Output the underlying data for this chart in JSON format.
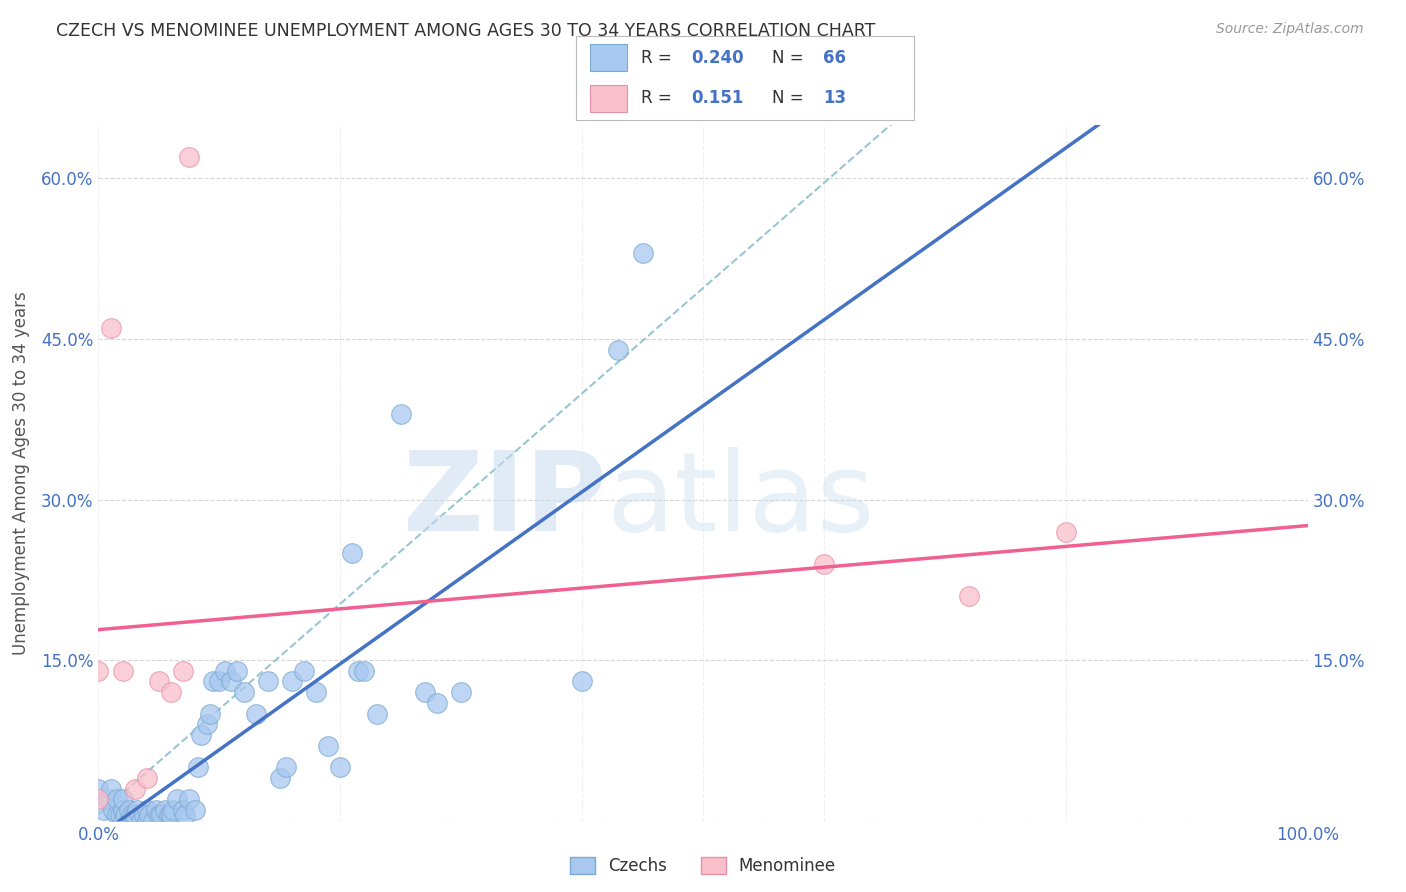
{
  "title": "CZECH VS MENOMINEE UNEMPLOYMENT AMONG AGES 30 TO 34 YEARS CORRELATION CHART",
  "source": "Source: ZipAtlas.com",
  "ylabel": "Unemployment Among Ages 30 to 34 years",
  "xlim": [
    0,
    1.0
  ],
  "ylim": [
    0,
    0.65
  ],
  "blue_color": "#A8C8F0",
  "pink_color": "#F9C0CB",
  "blue_edge": "#7AAAD0",
  "pink_edge": "#E890A8",
  "line_blue": "#4472C4",
  "line_pink": "#F06090",
  "dash_color": "#90B8D8",
  "legend_R_blue": "0.240",
  "legend_N_blue": "66",
  "legend_R_pink": "0.151",
  "legend_N_pink": "13",
  "czechs_x": [
    0.0,
    0.005,
    0.008,
    0.01,
    0.012,
    0.015,
    0.015,
    0.018,
    0.02,
    0.02,
    0.02,
    0.022,
    0.025,
    0.025,
    0.028,
    0.03,
    0.03,
    0.032,
    0.035,
    0.038,
    0.04,
    0.04,
    0.042,
    0.045,
    0.048,
    0.05,
    0.052,
    0.055,
    0.058,
    0.06,
    0.062,
    0.065,
    0.07,
    0.072,
    0.075,
    0.08,
    0.082,
    0.085,
    0.09,
    0.092,
    0.095,
    0.1,
    0.105,
    0.11,
    0.115,
    0.12,
    0.13,
    0.14,
    0.15,
    0.155,
    0.16,
    0.17,
    0.18,
    0.19,
    0.2,
    0.21,
    0.215,
    0.22,
    0.23,
    0.25,
    0.27,
    0.28,
    0.3,
    0.4,
    0.43,
    0.45
  ],
  "czechs_y": [
    0.03,
    0.01,
    0.02,
    0.03,
    0.01,
    0.005,
    0.02,
    0.005,
    0.0,
    0.01,
    0.02,
    0.005,
    0.0,
    0.01,
    0.005,
    0.0,
    0.005,
    0.01,
    0.0,
    0.005,
    0.0,
    0.01,
    0.005,
    0.0,
    0.01,
    0.005,
    0.005,
    0.01,
    0.005,
    0.005,
    0.01,
    0.02,
    0.01,
    0.005,
    0.02,
    0.01,
    0.05,
    0.08,
    0.09,
    0.1,
    0.13,
    0.13,
    0.14,
    0.13,
    0.14,
    0.12,
    0.1,
    0.13,
    0.04,
    0.05,
    0.13,
    0.14,
    0.12,
    0.07,
    0.05,
    0.25,
    0.14,
    0.14,
    0.1,
    0.38,
    0.12,
    0.11,
    0.12,
    0.13,
    0.44,
    0.53
  ],
  "menominee_x": [
    0.0,
    0.0,
    0.01,
    0.02,
    0.03,
    0.04,
    0.05,
    0.06,
    0.07,
    0.075,
    0.6,
    0.72,
    0.8
  ],
  "menominee_y": [
    0.02,
    0.14,
    0.46,
    0.14,
    0.03,
    0.04,
    0.13,
    0.12,
    0.14,
    0.62,
    0.24,
    0.21,
    0.27
  ]
}
